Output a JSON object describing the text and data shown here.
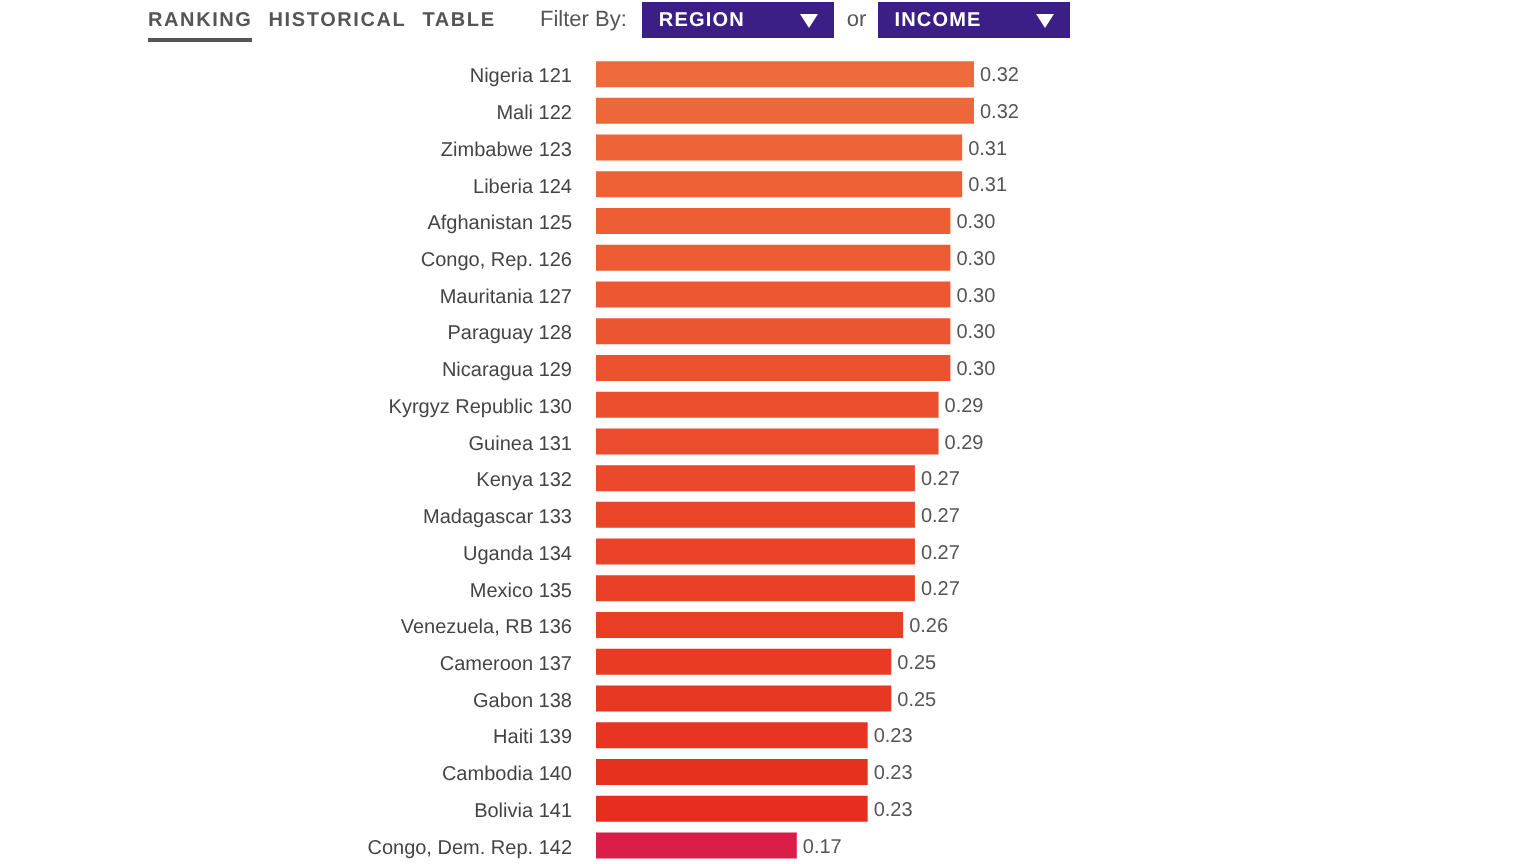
{
  "chart_data": {
    "type": "bar",
    "orientation": "horizontal",
    "categories": [
      "Nigeria 121",
      "Mali 122",
      "Zimbabwe 123",
      "Liberia 124",
      "Afghanistan 125",
      "Congo, Rep. 126",
      "Mauritania 127",
      "Paraguay 128",
      "Nicaragua 129",
      "Kyrgyz Republic 130",
      "Guinea 131",
      "Kenya 132",
      "Madagascar 133",
      "Uganda 134",
      "Mexico 135",
      "Venezuela, RB 136",
      "Cameroon 137",
      "Gabon 138",
      "Haiti 139",
      "Cambodia 140",
      "Bolivia 141",
      "Congo, Dem. Rep. 142"
    ],
    "values": [
      0.32,
      0.32,
      0.31,
      0.31,
      0.3,
      0.3,
      0.3,
      0.3,
      0.3,
      0.29,
      0.29,
      0.27,
      0.27,
      0.27,
      0.27,
      0.26,
      0.25,
      0.25,
      0.23,
      0.23,
      0.23,
      0.17
    ],
    "colors": [
      "#ee6a3a",
      "#ee673a",
      "#ee6438",
      "#ee6137",
      "#ed5e35",
      "#ed5b34",
      "#ed5833",
      "#ec5531",
      "#ec5230",
      "#ec4f2e",
      "#eb4c2d",
      "#eb492b",
      "#eb462a",
      "#ea4328",
      "#ea4027",
      "#e93d25",
      "#e93a24",
      "#e83722",
      "#e83421",
      "#e7311f",
      "#e72e1e",
      "#d91e4a"
    ],
    "value_labels": [
      "0.32",
      "0.32",
      "0.31",
      "0.31",
      "0.30",
      "0.30",
      "0.30",
      "0.30",
      "0.30",
      "0.29",
      "0.29",
      "0.27",
      "0.27",
      "0.27",
      "0.27",
      "0.26",
      "0.25",
      "0.25",
      "0.23",
      "0.23",
      "0.23",
      "0.17"
    ],
    "annotations": [
      "RANKING",
      "HISTORICAL",
      "TABLE",
      "Filter By:",
      "REGION",
      "or",
      "INCOME"
    ]
  }
}
